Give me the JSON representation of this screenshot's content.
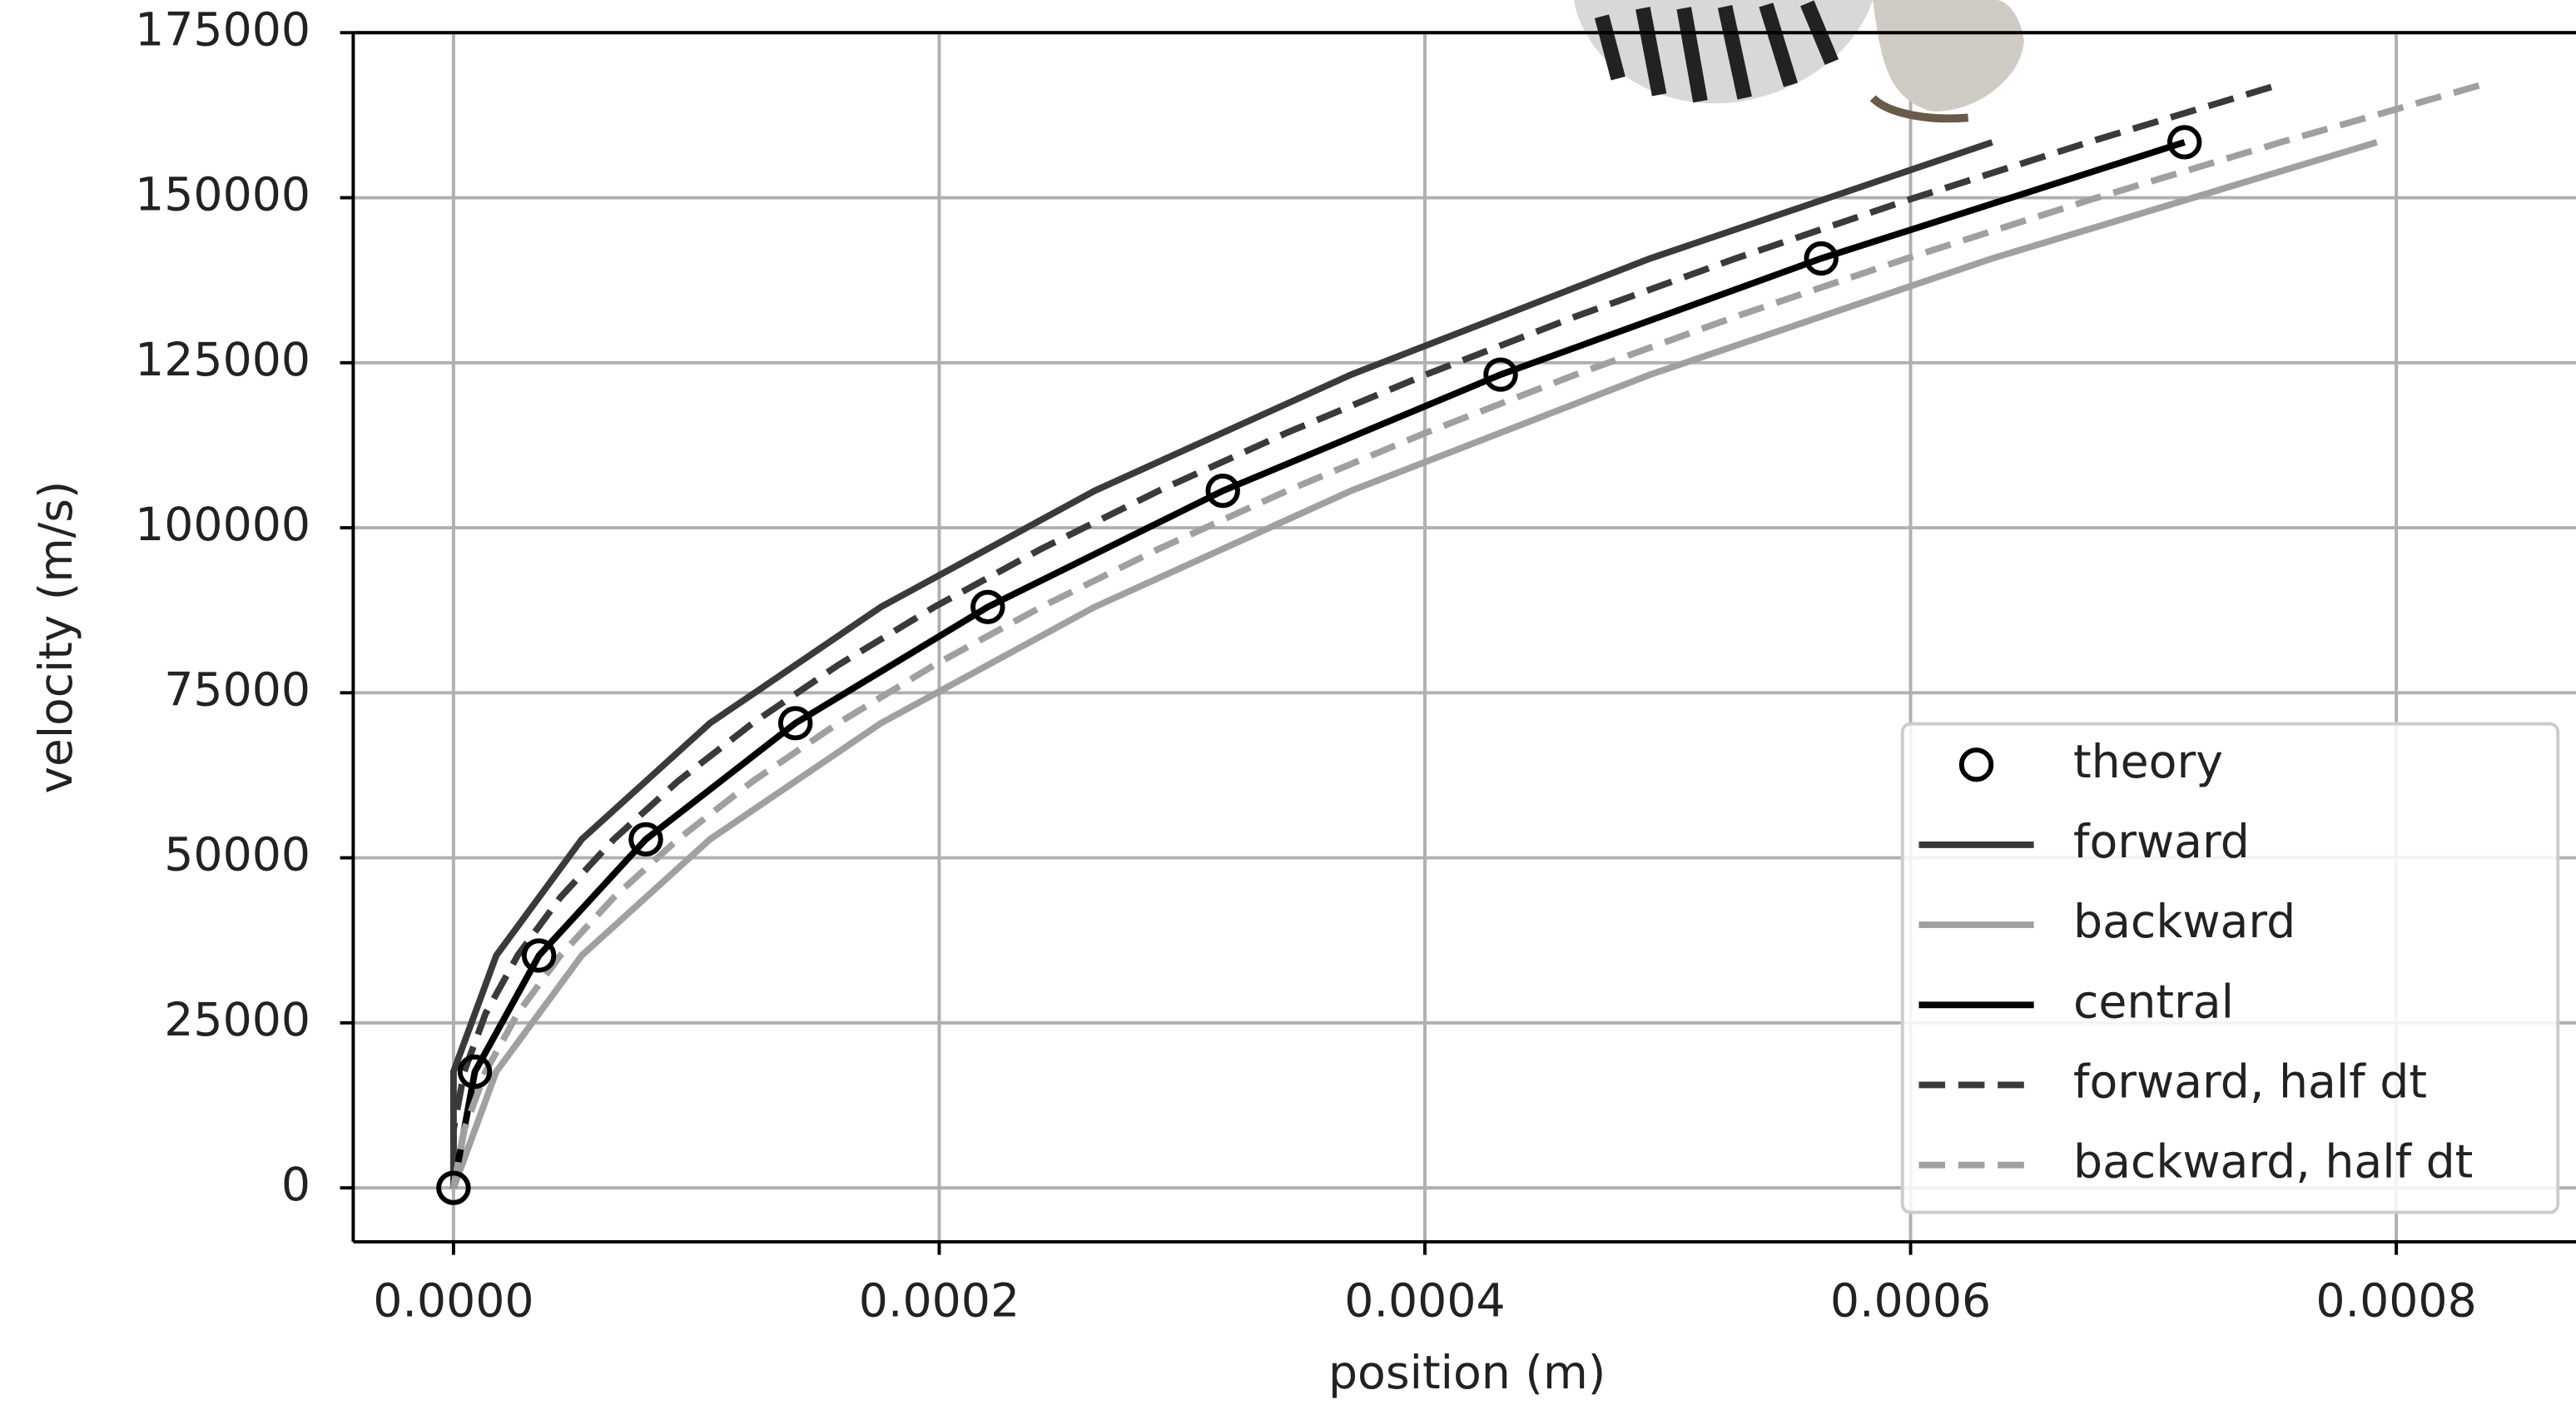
{
  "chart_data": {
    "type": "line",
    "xlabel": "position (m)",
    "ylabel": "velocity (m/s)",
    "xlim": [
      -4.13e-05,
      0.000874
    ],
    "ylim": [
      -8170,
      175000
    ],
    "xticks": [
      {
        "value": 0,
        "label": "0.0000"
      },
      {
        "value": 0.0002,
        "label": "0.0002"
      },
      {
        "value": 0.0004,
        "label": "0.0004"
      },
      {
        "value": 0.0006,
        "label": "0.0006"
      },
      {
        "value": 0.0008,
        "label": "0.0008"
      }
    ],
    "yticks": [
      0,
      25000,
      50000,
      75000,
      100000,
      125000,
      150000,
      175000
    ],
    "grid": true,
    "legend": "lower right",
    "series": [
      {
        "name": "theory",
        "color": "#000000",
        "marker": "circle",
        "line": false,
        "x": [
          0,
          8.8e-06,
          3.52e-05,
          7.92e-05,
          0.0001408,
          0.00022,
          0.0003168,
          0.0004312,
          0.0005632,
          0.0007128
        ],
        "values": [
          0,
          17600,
          35200,
          52800,
          70400,
          88000,
          105600,
          123200,
          140800,
          158400
        ]
      },
      {
        "name": "forward",
        "color": "#3a3a3a",
        "dash": false,
        "width": 4,
        "x": [
          0,
          0,
          1.76e-05,
          5.28e-05,
          0.0001056,
          0.000176,
          0.000264,
          0.0003696,
          0.0004928,
          0.0006336
        ],
        "values": [
          0,
          17600,
          35200,
          52800,
          70400,
          88000,
          105600,
          123200,
          140800,
          158400
        ]
      },
      {
        "name": "backward",
        "color": "#a0a0a0",
        "dash": false,
        "width": 4,
        "x": [
          0,
          1.76e-05,
          5.28e-05,
          0.0001056,
          0.000176,
          0.000264,
          0.0003696,
          0.0004928,
          0.0006336,
          0.000792
        ],
        "values": [
          0,
          17600,
          35200,
          52800,
          70400,
          88000,
          105600,
          123200,
          140800,
          158400
        ]
      },
      {
        "name": "central",
        "color": "#000000",
        "dash": false,
        "width": 4,
        "x": [
          0,
          8.8e-06,
          3.52e-05,
          7.92e-05,
          0.0001408,
          0.00022,
          0.0003168,
          0.0004312,
          0.0005632,
          0.0007128
        ],
        "values": [
          0,
          17600,
          35200,
          52800,
          70400,
          88000,
          105600,
          123200,
          140800,
          158400
        ]
      },
      {
        "name": "forward, half dt",
        "color": "#3a3a3a",
        "dash": true,
        "width": 4,
        "x": [
          0,
          0,
          4.4e-06,
          1.32e-05,
          2.64e-05,
          4.4e-05,
          6.6e-05,
          9.24e-05,
          0.0001232,
          0.0001584,
          0.000198,
          0.000242,
          0.0002904,
          0.0003432,
          0.0004004,
          0.000462,
          0.000528,
          0.0005984,
          0.0006732,
          0.0007524
        ],
        "values": [
          0,
          8800,
          17600,
          26400,
          35200,
          44000,
          52800,
          61600,
          70400,
          79200,
          88000,
          96800,
          105600,
          114400,
          123200,
          132000,
          140800,
          149600,
          158400,
          167200
        ]
      },
      {
        "name": "backward, half dt",
        "color": "#a0a0a0",
        "dash": true,
        "width": 4,
        "x": [
          0,
          4.4e-06,
          1.32e-05,
          2.64e-05,
          4.4e-05,
          6.6e-05,
          9.24e-05,
          0.0001232,
          0.0001584,
          0.000198,
          0.000242,
          0.0002904,
          0.0003432,
          0.0004004,
          0.000462,
          0.000528,
          0.0005984,
          0.0006732,
          0.0007524,
          0.000836
        ],
        "values": [
          0,
          8800,
          17600,
          26400,
          35200,
          44000,
          52800,
          61600,
          70400,
          79200,
          88000,
          96800,
          105600,
          114400,
          123200,
          132000,
          140800,
          149600,
          158400,
          167200
        ]
      }
    ]
  }
}
